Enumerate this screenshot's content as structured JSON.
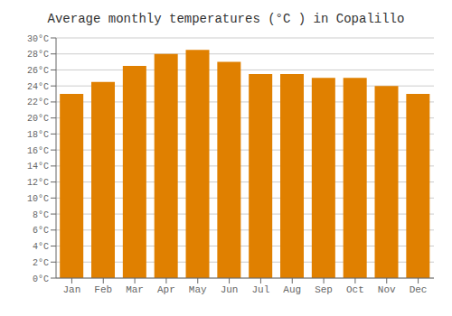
{
  "chart_data": {
    "type": "bar",
    "title": "Average monthly temperatures (°C ) in Copalillo",
    "categories": [
      "Jan",
      "Feb",
      "Mar",
      "Apr",
      "May",
      "Jun",
      "Jul",
      "Aug",
      "Sep",
      "Oct",
      "Nov",
      "Dec"
    ],
    "values": [
      23.0,
      24.5,
      26.5,
      28.0,
      28.5,
      27.0,
      25.5,
      25.5,
      25.0,
      25.0,
      24.0,
      23.0
    ],
    "color": "#E08000",
    "ylim": [
      0,
      30
    ],
    "yticks": [
      {
        "value": 0,
        "label": "0°C"
      },
      {
        "value": 2,
        "label": "2°C"
      },
      {
        "value": 4,
        "label": "4°C"
      },
      {
        "value": 6,
        "label": "6°C"
      },
      {
        "value": 8,
        "label": "8°C"
      },
      {
        "value": 10,
        "label": "10°C"
      },
      {
        "value": 12,
        "label": "12°C"
      },
      {
        "value": 14,
        "label": "14°C"
      },
      {
        "value": 16,
        "label": "16°C"
      },
      {
        "value": 18,
        "label": "18°C"
      },
      {
        "value": 20,
        "label": "20°C"
      },
      {
        "value": 22,
        "label": "22°C"
      },
      {
        "value": 24,
        "label": "24°C"
      },
      {
        "value": 26,
        "label": "26°C"
      },
      {
        "value": 28,
        "label": "28°C"
      },
      {
        "value": 30,
        "label": "30°C"
      }
    ],
    "grid": true
  }
}
